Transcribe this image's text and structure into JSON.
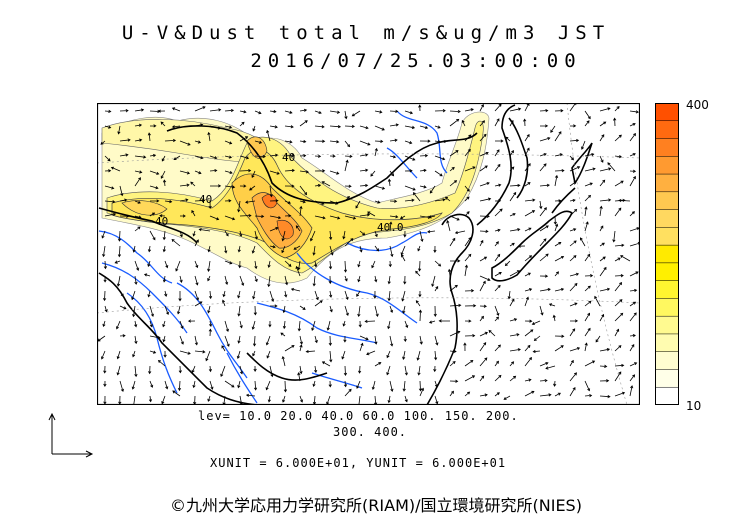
{
  "title": {
    "line1": "U-V&Dust total m/s&ug/m3 JST",
    "line2": "2016/07/25.03:00:00"
  },
  "colorbar": {
    "max_label": "400",
    "min_label": "10",
    "colors": [
      "#ff5000",
      "#ff6a10",
      "#ff8020",
      "#ff9a30",
      "#ffb040",
      "#ffc850",
      "#ffd860",
      "#ffe060",
      "#ffea00",
      "#fff000",
      "#fff530",
      "#fff860",
      "#fffa90",
      "#fffcb0",
      "#fffdd0",
      "#ffffe8",
      "#ffffff"
    ]
  },
  "levels": {
    "line1": "lev= 10.0 20.0 40.0 60.0 100. 150. 200.",
    "line2": "300. 400."
  },
  "units": "XUNIT = 6.000E+01, YUNIT = 6.000E+01",
  "contour_labels": [
    "40",
    "40",
    "40",
    "40.0"
  ],
  "copyright": "©九州大学応用力学研究所(RIAM)/国立環境研究所(NIES)"
}
